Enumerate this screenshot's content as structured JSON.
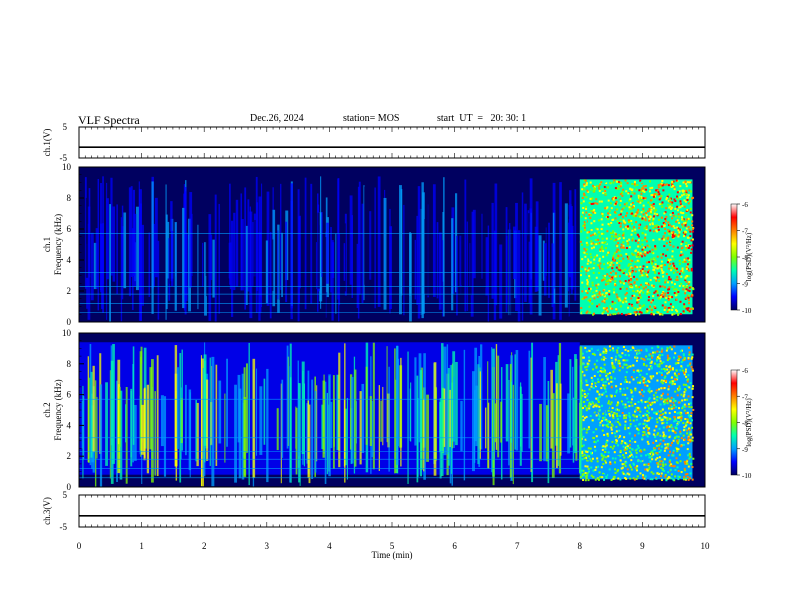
{
  "header": {
    "title": "VLF Spectra",
    "date": "Dec.26, 2024",
    "station": "station= MOS",
    "start_ut": "start  UT  =   20: 30: 1"
  },
  "colors": {
    "colormap": [
      "#000060",
      "#0000ff",
      "#00a0ff",
      "#00ffb0",
      "#80ff00",
      "#ffff00",
      "#ff8000",
      "#ff0000",
      "#ffffff"
    ]
  },
  "chart_data": [
    {
      "type": "line",
      "ylabel": "ch.1(V)",
      "xlim": [
        0,
        10
      ],
      "ylim": [
        -5,
        5
      ],
      "yticks": [
        "5",
        "-5"
      ],
      "series": [
        {
          "x": [
            0,
            10
          ],
          "values": [
            -1.5,
            -1.5
          ]
        }
      ]
    },
    {
      "type": "heatmap",
      "ylabel": "ch.1\nFrequency (kHz)",
      "xlim": [
        0,
        10
      ],
      "ylim": [
        0,
        10
      ],
      "yticks": [
        "0",
        "2",
        "4",
        "6",
        "8",
        "10"
      ],
      "colorbar": {
        "label": "log(PSD)(V²/Hz)",
        "range": [
          -10,
          -6
        ],
        "ticks": [
          "-6",
          "-7",
          "-8",
          "-9",
          "-10"
        ]
      },
      "regions": [
        {
          "t_range": [
            0,
            8
          ],
          "description": "impulsive broadband sferics; background 1-9 kHz",
          "log_psd": -9.2
        },
        {
          "t_range": [
            8,
            9.8
          ],
          "description": "broadband noise 0.5-9.2 kHz",
          "log_psd": -7.6
        }
      ]
    },
    {
      "type": "heatmap",
      "ylabel": "ch.2\nFrequency (kHz)",
      "xlim": [
        0,
        10
      ],
      "ylim": [
        0,
        10
      ],
      "yticks": [
        "0",
        "2",
        "4",
        "6",
        "8",
        "10"
      ],
      "colorbar": {
        "label": "log(PSD)(V²/Hz)",
        "range": [
          -10,
          -6
        ],
        "ticks": [
          "-6",
          "-7",
          "-8",
          "-9",
          "-10"
        ]
      },
      "regions": [
        {
          "t_range": [
            0,
            8
          ],
          "description": "sferics; strongest 5-9 kHz",
          "log_psd": -8.0
        },
        {
          "t_range": [
            8,
            9.8
          ],
          "description": "broadband noise 0.5-9 kHz",
          "log_psd": -8.2
        }
      ]
    },
    {
      "type": "line",
      "ylabel": "ch.3(V)",
      "xlabel": "Time  (min)",
      "xlim": [
        0,
        10
      ],
      "ylim": [
        -5,
        5
      ],
      "yticks": [
        "5",
        "-5"
      ],
      "xticks": [
        "0",
        "1",
        "2",
        "3",
        "4",
        "5",
        "6",
        "7",
        "8",
        "9",
        "10"
      ],
      "series": [
        {
          "x": [
            0,
            10
          ],
          "values": [
            -1.5,
            -1.5
          ]
        }
      ]
    }
  ]
}
